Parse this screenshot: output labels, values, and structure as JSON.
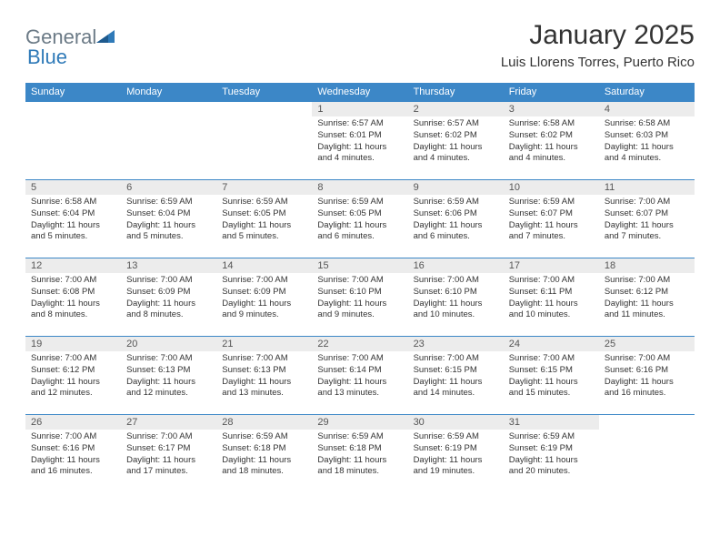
{
  "logo": {
    "text1": "General",
    "text2": "Blue"
  },
  "title": "January 2025",
  "subtitle": "Luis Llorens Torres, Puerto Rico",
  "colors": {
    "header_bg": "#3c87c7",
    "header_text": "#ffffff",
    "daynum_bg": "#ececec",
    "border": "#3c87c7",
    "body_text": "#333333",
    "logo_gray": "#6b7a86",
    "logo_blue": "#2f7ab8"
  },
  "typography": {
    "title_fontsize": 30,
    "subtitle_fontsize": 15,
    "header_fontsize": 11,
    "cell_fontsize": 9.5
  },
  "day_names": [
    "Sunday",
    "Monday",
    "Tuesday",
    "Wednesday",
    "Thursday",
    "Friday",
    "Saturday"
  ],
  "weeks": [
    [
      null,
      null,
      null,
      {
        "n": "1",
        "sunrise": "6:57 AM",
        "sunset": "6:01 PM",
        "daylight": "11 hours and 4 minutes."
      },
      {
        "n": "2",
        "sunrise": "6:57 AM",
        "sunset": "6:02 PM",
        "daylight": "11 hours and 4 minutes."
      },
      {
        "n": "3",
        "sunrise": "6:58 AM",
        "sunset": "6:02 PM",
        "daylight": "11 hours and 4 minutes."
      },
      {
        "n": "4",
        "sunrise": "6:58 AM",
        "sunset": "6:03 PM",
        "daylight": "11 hours and 4 minutes."
      }
    ],
    [
      {
        "n": "5",
        "sunrise": "6:58 AM",
        "sunset": "6:04 PM",
        "daylight": "11 hours and 5 minutes."
      },
      {
        "n": "6",
        "sunrise": "6:59 AM",
        "sunset": "6:04 PM",
        "daylight": "11 hours and 5 minutes."
      },
      {
        "n": "7",
        "sunrise": "6:59 AM",
        "sunset": "6:05 PM",
        "daylight": "11 hours and 5 minutes."
      },
      {
        "n": "8",
        "sunrise": "6:59 AM",
        "sunset": "6:05 PM",
        "daylight": "11 hours and 6 minutes."
      },
      {
        "n": "9",
        "sunrise": "6:59 AM",
        "sunset": "6:06 PM",
        "daylight": "11 hours and 6 minutes."
      },
      {
        "n": "10",
        "sunrise": "6:59 AM",
        "sunset": "6:07 PM",
        "daylight": "11 hours and 7 minutes."
      },
      {
        "n": "11",
        "sunrise": "7:00 AM",
        "sunset": "6:07 PM",
        "daylight": "11 hours and 7 minutes."
      }
    ],
    [
      {
        "n": "12",
        "sunrise": "7:00 AM",
        "sunset": "6:08 PM",
        "daylight": "11 hours and 8 minutes."
      },
      {
        "n": "13",
        "sunrise": "7:00 AM",
        "sunset": "6:09 PM",
        "daylight": "11 hours and 8 minutes."
      },
      {
        "n": "14",
        "sunrise": "7:00 AM",
        "sunset": "6:09 PM",
        "daylight": "11 hours and 9 minutes."
      },
      {
        "n": "15",
        "sunrise": "7:00 AM",
        "sunset": "6:10 PM",
        "daylight": "11 hours and 9 minutes."
      },
      {
        "n": "16",
        "sunrise": "7:00 AM",
        "sunset": "6:10 PM",
        "daylight": "11 hours and 10 minutes."
      },
      {
        "n": "17",
        "sunrise": "7:00 AM",
        "sunset": "6:11 PM",
        "daylight": "11 hours and 10 minutes."
      },
      {
        "n": "18",
        "sunrise": "7:00 AM",
        "sunset": "6:12 PM",
        "daylight": "11 hours and 11 minutes."
      }
    ],
    [
      {
        "n": "19",
        "sunrise": "7:00 AM",
        "sunset": "6:12 PM",
        "daylight": "11 hours and 12 minutes."
      },
      {
        "n": "20",
        "sunrise": "7:00 AM",
        "sunset": "6:13 PM",
        "daylight": "11 hours and 12 minutes."
      },
      {
        "n": "21",
        "sunrise": "7:00 AM",
        "sunset": "6:13 PM",
        "daylight": "11 hours and 13 minutes."
      },
      {
        "n": "22",
        "sunrise": "7:00 AM",
        "sunset": "6:14 PM",
        "daylight": "11 hours and 13 minutes."
      },
      {
        "n": "23",
        "sunrise": "7:00 AM",
        "sunset": "6:15 PM",
        "daylight": "11 hours and 14 minutes."
      },
      {
        "n": "24",
        "sunrise": "7:00 AM",
        "sunset": "6:15 PM",
        "daylight": "11 hours and 15 minutes."
      },
      {
        "n": "25",
        "sunrise": "7:00 AM",
        "sunset": "6:16 PM",
        "daylight": "11 hours and 16 minutes."
      }
    ],
    [
      {
        "n": "26",
        "sunrise": "7:00 AM",
        "sunset": "6:16 PM",
        "daylight": "11 hours and 16 minutes."
      },
      {
        "n": "27",
        "sunrise": "7:00 AM",
        "sunset": "6:17 PM",
        "daylight": "11 hours and 17 minutes."
      },
      {
        "n": "28",
        "sunrise": "6:59 AM",
        "sunset": "6:18 PM",
        "daylight": "11 hours and 18 minutes."
      },
      {
        "n": "29",
        "sunrise": "6:59 AM",
        "sunset": "6:18 PM",
        "daylight": "11 hours and 18 minutes."
      },
      {
        "n": "30",
        "sunrise": "6:59 AM",
        "sunset": "6:19 PM",
        "daylight": "11 hours and 19 minutes."
      },
      {
        "n": "31",
        "sunrise": "6:59 AM",
        "sunset": "6:19 PM",
        "daylight": "11 hours and 20 minutes."
      },
      null
    ]
  ],
  "labels": {
    "sunrise": "Sunrise:",
    "sunset": "Sunset:",
    "daylight": "Daylight:"
  }
}
